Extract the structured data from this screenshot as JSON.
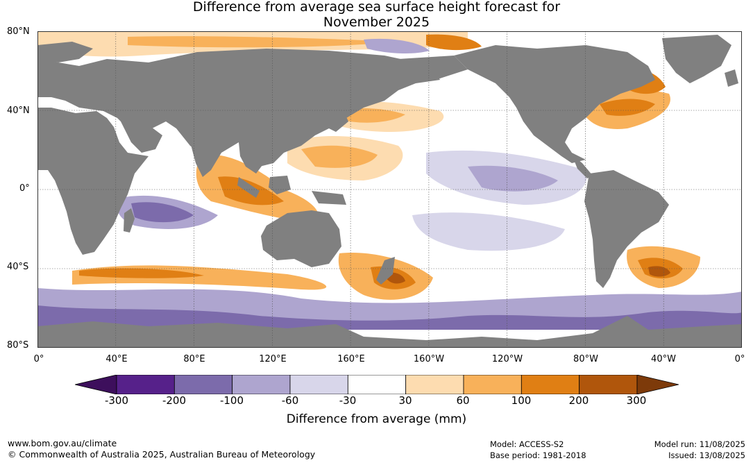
{
  "title_line1": "Difference from average sea surface height forecast for",
  "title_line2": "November 2025",
  "lat_labels": [
    "80°N",
    "40°N",
    "0°",
    "40°S",
    "80°S"
  ],
  "lon_labels": [
    "0°",
    "40°E",
    "80°E",
    "120°E",
    "160°E",
    "160°W",
    "120°W",
    "80°W",
    "40°W",
    "0°"
  ],
  "colorbar": {
    "title": "Difference from average (mm)",
    "tick_labels": [
      "-300",
      "-200",
      "-100",
      "-60",
      "-30",
      "30",
      "60",
      "100",
      "200",
      "300"
    ],
    "colors": [
      "#3d0f5c",
      "#56218a",
      "#7c6bab",
      "#aea5cf",
      "#d8d6ea",
      "#ffffff",
      "#fddcb0",
      "#f8b15a",
      "#e07f14",
      "#b0560c",
      "#7d3a0a"
    ]
  },
  "colors": {
    "land": "#808080",
    "ocean": "#ffffff",
    "grid": "#555555"
  },
  "footer": {
    "url": "www.bom.gov.au/climate",
    "copyright": "© Commonwealth of Australia 2025, Australian Bureau of Meteorology",
    "model": "Model: ACCESS-S2",
    "base_period": "Base period: 1981-2018",
    "model_run": "Model run: 11/08/2025",
    "issued": "Issued: 13/08/2025"
  }
}
